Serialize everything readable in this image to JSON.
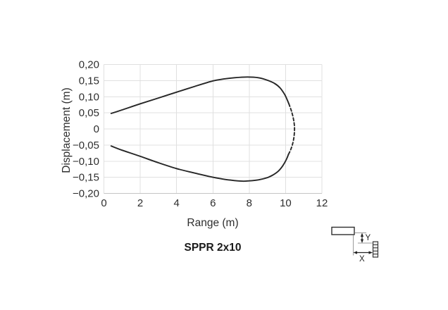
{
  "page": {
    "background": "#ffffff"
  },
  "chart_data": {
    "type": "line",
    "title": "SPPR 2x10",
    "xlabel": "Range (m)",
    "ylabel": "Displacement (m)",
    "xlim": [
      0,
      12
    ],
    "ylim": [
      -0.2,
      0.2
    ],
    "grid": true,
    "legend": "none",
    "decimal_separator": ",",
    "xticks": [
      {
        "v": 0,
        "label": "0"
      },
      {
        "v": 2,
        "label": "2"
      },
      {
        "v": 4,
        "label": "4"
      },
      {
        "v": 6,
        "label": "6"
      },
      {
        "v": 8,
        "label": "8"
      },
      {
        "v": 10,
        "label": "10"
      },
      {
        "v": 12,
        "label": "12"
      }
    ],
    "yticks": [
      {
        "v": 0.2,
        "label": "0,20"
      },
      {
        "v": 0.15,
        "label": "0,15"
      },
      {
        "v": 0.1,
        "label": "0,10"
      },
      {
        "v": 0.05,
        "label": "0,05"
      },
      {
        "v": 0.0,
        "label": "0"
      },
      {
        "v": -0.05,
        "label": "−0,05"
      },
      {
        "v": -0.1,
        "label": "−0,10"
      },
      {
        "v": -0.15,
        "label": "−0,15"
      },
      {
        "v": -0.2,
        "label": "−0,20"
      }
    ],
    "series": [
      {
        "name": "envelope-upper",
        "style": "solid",
        "points": [
          [
            0.4,
            0.048
          ],
          [
            1,
            0.059
          ],
          [
            2,
            0.078
          ],
          [
            3,
            0.096
          ],
          [
            4,
            0.114
          ],
          [
            5,
            0.132
          ],
          [
            6,
            0.149
          ],
          [
            6.6,
            0.155
          ],
          [
            7.2,
            0.159
          ],
          [
            7.9,
            0.161
          ],
          [
            8.5,
            0.159
          ],
          [
            9.0,
            0.151
          ],
          [
            9.4,
            0.141
          ],
          [
            9.7,
            0.127
          ],
          [
            9.95,
            0.107
          ],
          [
            10.1,
            0.089
          ],
          [
            10.18,
            0.078
          ]
        ]
      },
      {
        "name": "envelope-tip",
        "style": "dashed",
        "points": [
          [
            10.18,
            0.078
          ],
          [
            10.32,
            0.056
          ],
          [
            10.43,
            0.032
          ],
          [
            10.49,
            0.006
          ],
          [
            10.47,
            -0.022
          ],
          [
            10.38,
            -0.048
          ],
          [
            10.27,
            -0.066
          ],
          [
            10.16,
            -0.079
          ]
        ]
      },
      {
        "name": "envelope-lower",
        "style": "solid",
        "points": [
          [
            10.16,
            -0.079
          ],
          [
            10.05,
            -0.094
          ],
          [
            9.85,
            -0.114
          ],
          [
            9.6,
            -0.131
          ],
          [
            9.3,
            -0.143
          ],
          [
            9.0,
            -0.151
          ],
          [
            8.5,
            -0.158
          ],
          [
            8.0,
            -0.161
          ],
          [
            7.6,
            -0.162
          ],
          [
            7.0,
            -0.159
          ],
          [
            6.5,
            -0.155
          ],
          [
            6.0,
            -0.15
          ],
          [
            5.0,
            -0.137
          ],
          [
            4.0,
            -0.123
          ],
          [
            3.0,
            -0.105
          ],
          [
            2.0,
            -0.085
          ],
          [
            1.0,
            -0.066
          ],
          [
            0.4,
            -0.053
          ]
        ]
      }
    ],
    "line_color": "#262626",
    "grid_color": "#e0e0e0",
    "axis_color": "#c4c4c4",
    "text_color": "#2e2e2e"
  },
  "icon": {
    "y_label": "Y",
    "x_label": "X"
  }
}
